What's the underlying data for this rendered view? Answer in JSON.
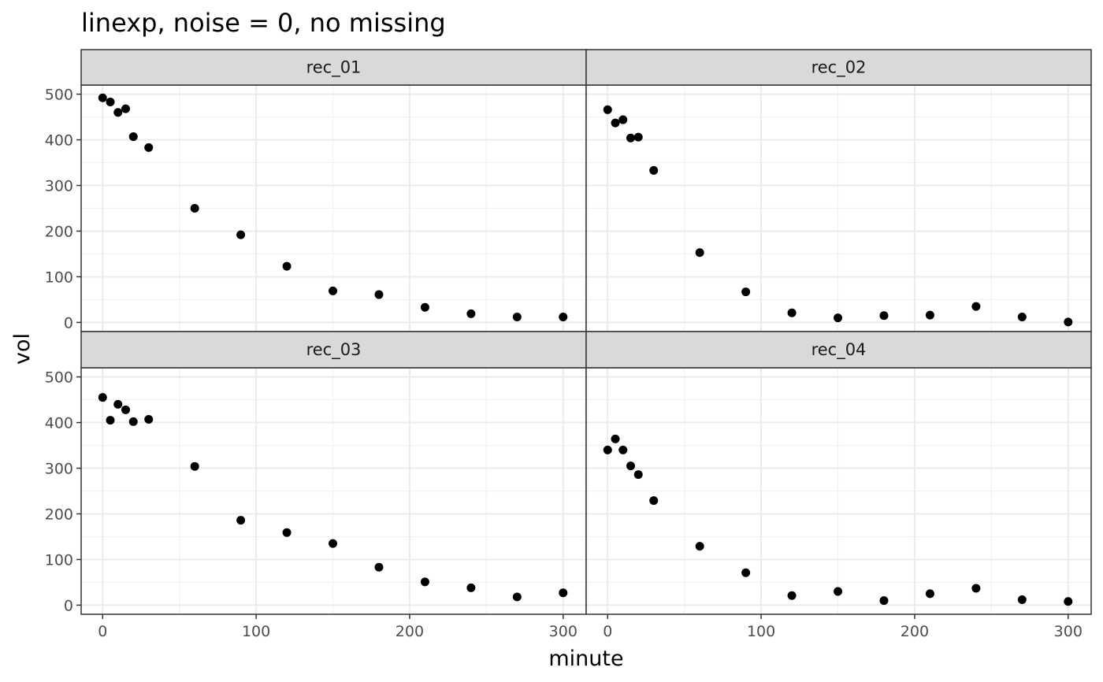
{
  "chart_data": {
    "type": "scatter",
    "title": "linexp, noise = 0, no missing",
    "xlabel": "minute",
    "ylabel": "vol",
    "xlim": [
      -14,
      315
    ],
    "ylim": [
      -20,
      520
    ],
    "x_ticks": [
      0,
      100,
      200,
      300
    ],
    "y_ticks": [
      0,
      100,
      200,
      300,
      400,
      500
    ],
    "grid": true,
    "legend": "none",
    "point_color": "#000000",
    "layout": {
      "rows": 2,
      "cols": 2
    },
    "panels": [
      {
        "name": "rec_01",
        "x": [
          0,
          5,
          10,
          15,
          20,
          30,
          60,
          90,
          120,
          150,
          180,
          210,
          240,
          270,
          300
        ],
        "y": [
          492,
          483,
          460,
          468,
          407,
          383,
          250,
          192,
          123,
          69,
          61,
          33,
          19,
          12,
          12
        ]
      },
      {
        "name": "rec_02",
        "x": [
          0,
          5,
          10,
          15,
          20,
          30,
          60,
          90,
          120,
          150,
          180,
          210,
          240,
          270,
          300
        ],
        "y": [
          466,
          437,
          444,
          404,
          406,
          333,
          153,
          67,
          21,
          10,
          15,
          16,
          35,
          12,
          1
        ]
      },
      {
        "name": "rec_03",
        "x": [
          0,
          5,
          10,
          15,
          20,
          30,
          60,
          90,
          120,
          150,
          180,
          210,
          240,
          270,
          300
        ],
        "y": [
          455,
          405,
          440,
          428,
          402,
          407,
          304,
          186,
          159,
          135,
          83,
          51,
          38,
          18,
          27
        ]
      },
      {
        "name": "rec_04",
        "x": [
          0,
          5,
          10,
          15,
          20,
          30,
          60,
          90,
          120,
          150,
          180,
          210,
          240,
          270,
          300
        ],
        "y": [
          340,
          364,
          340,
          305,
          286,
          229,
          129,
          71,
          21,
          30,
          10,
          25,
          37,
          12,
          8
        ]
      }
    ]
  }
}
